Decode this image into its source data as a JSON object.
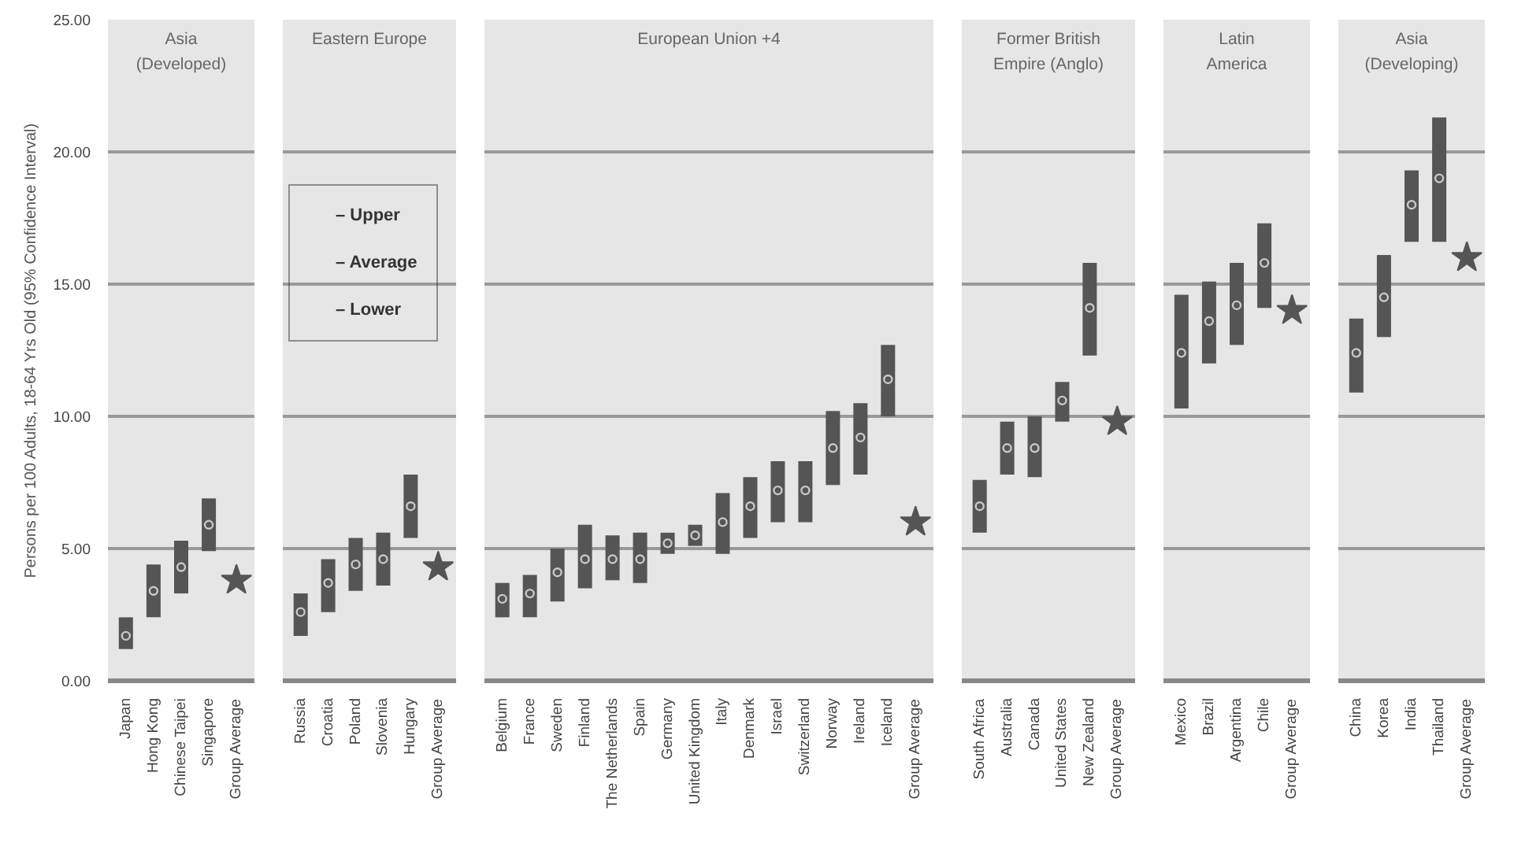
{
  "chart_data": [
    {
      "type": "scatter",
      "title": "Asia\n(Developed)",
      "ylabel": "Persons per 100 Adults, 18-64 Yrs Old (95% Confidence Interval)",
      "categories": [
        "Japan",
        "Hong Kong",
        "Chinese Taipei",
        "Singapore",
        "Group Average"
      ],
      "ylim": [
        0,
        25
      ],
      "yticks": [
        {
          "value": 0,
          "label": "0.00"
        },
        {
          "value": 5,
          "label": "5.00"
        },
        {
          "value": 10,
          "label": "10.00"
        },
        {
          "value": 15,
          "label": "15.00"
        },
        {
          "value": 20,
          "label": "20.00"
        },
        {
          "value": 25,
          "label": "25.00"
        }
      ],
      "grid": "y",
      "series": [
        {
          "marker": "circle",
          "color": "#555555",
          "values": [
            1.7,
            3.4,
            4.3,
            5.9,
            null
          ],
          "errors": [
            [
              1.2,
              2.4
            ],
            [
              2.4,
              4.4
            ],
            [
              3.3,
              5.3
            ],
            [
              4.9,
              6.9
            ],
            null
          ]
        },
        {
          "marker": "star",
          "color": "#555555",
          "values": [
            null,
            null,
            null,
            null,
            3.8
          ]
        }
      ]
    },
    {
      "type": "scatter",
      "title": "Eastern Europe",
      "categories": [
        "Russia",
        "Croatia",
        "Poland",
        "Slovenia",
        "Hungary",
        "Group Average"
      ],
      "ylim": [
        0,
        25
      ],
      "yticks": [
        0,
        5,
        10,
        15,
        20,
        25
      ],
      "grid": "y",
      "tick_labels": "x",
      "series": [
        {
          "marker": "circle",
          "color": "#555555",
          "values": [
            2.6,
            3.7,
            4.4,
            4.6,
            6.6,
            null
          ],
          "errors": [
            [
              1.7,
              3.3
            ],
            [
              2.6,
              4.6
            ],
            [
              3.4,
              5.4
            ],
            [
              3.6,
              5.6
            ],
            [
              5.4,
              7.8
            ],
            null
          ]
        },
        {
          "marker": "star",
          "color": "#555555",
          "values": [
            null,
            null,
            null,
            null,
            null,
            4.3
          ]
        }
      ],
      "annotations": [
        "– Upper",
        "– Average",
        "– Lower"
      ]
    },
    {
      "type": "scatter",
      "title": "European Union +4",
      "categories": [
        "Belgium",
        "France",
        "Sweden",
        "Finland",
        "The Netherlands",
        "Spain",
        "Germany",
        "United Kingdom",
        "Italy",
        "Denmark",
        "Israel",
        "Switzerland",
        "Norway",
        "Ireland",
        "Iceland",
        "Group Average"
      ],
      "ylim": [
        0,
        25
      ],
      "yticks": [
        0,
        5,
        10,
        15,
        20,
        25
      ],
      "grid": "y",
      "tick_labels": "x",
      "series": [
        {
          "marker": "circle",
          "color": "#555555",
          "values": [
            3.1,
            3.3,
            4.1,
            4.6,
            4.6,
            4.6,
            5.2,
            5.5,
            6.0,
            6.6,
            7.2,
            7.2,
            8.8,
            9.2,
            11.4,
            null
          ],
          "errors": [
            [
              2.4,
              3.7
            ],
            [
              2.4,
              4.0
            ],
            [
              3.0,
              5.0
            ],
            [
              3.5,
              5.9
            ],
            [
              3.8,
              5.5
            ],
            [
              3.7,
              5.6
            ],
            [
              4.8,
              5.6
            ],
            [
              5.1,
              5.9
            ],
            [
              4.8,
              7.1
            ],
            [
              5.4,
              7.7
            ],
            [
              6.0,
              8.3
            ],
            [
              6.0,
              8.3
            ],
            [
              7.4,
              10.2
            ],
            [
              7.8,
              10.5
            ],
            [
              10.0,
              12.7
            ],
            null
          ]
        },
        {
          "marker": "star",
          "color": "#555555",
          "values": [
            null,
            null,
            null,
            null,
            null,
            null,
            null,
            null,
            null,
            null,
            null,
            null,
            null,
            null,
            null,
            6.0
          ]
        }
      ]
    },
    {
      "type": "scatter",
      "title": "Former British\nEmpire (Anglo)",
      "categories": [
        "South Africa",
        "Australia",
        "Canada",
        "United States",
        "New Zealand",
        "Group Average"
      ],
      "ylim": [
        0,
        25
      ],
      "yticks": [
        0,
        5,
        10,
        15,
        20,
        25
      ],
      "grid": "y",
      "tick_labels": "x",
      "series": [
        {
          "marker": "circle",
          "color": "#555555",
          "values": [
            6.6,
            8.8,
            8.8,
            10.6,
            14.1,
            null
          ],
          "errors": [
            [
              5.6,
              7.6
            ],
            [
              7.8,
              9.8
            ],
            [
              7.7,
              10.0
            ],
            [
              9.8,
              11.3
            ],
            [
              12.3,
              15.8
            ],
            null
          ]
        },
        {
          "marker": "star",
          "color": "#555555",
          "values": [
            null,
            null,
            null,
            null,
            null,
            9.8
          ]
        }
      ]
    },
    {
      "type": "scatter",
      "title": "Latin\nAmerica",
      "categories": [
        "Mexico",
        "Brazil",
        "Argentina",
        "Chile",
        "Group Average"
      ],
      "ylim": [
        0,
        25
      ],
      "yticks": [
        0,
        5,
        10,
        15,
        20,
        25
      ],
      "grid": "y",
      "tick_labels": "x",
      "series": [
        {
          "marker": "circle",
          "color": "#555555",
          "values": [
            12.4,
            13.6,
            14.2,
            15.8,
            null
          ],
          "errors": [
            [
              10.3,
              14.6
            ],
            [
              12.0,
              15.1
            ],
            [
              12.7,
              15.8
            ],
            [
              14.1,
              17.3
            ],
            null
          ]
        },
        {
          "marker": "star",
          "color": "#555555",
          "values": [
            null,
            null,
            null,
            null,
            14.0
          ]
        }
      ]
    },
    {
      "type": "scatter",
      "title": "Asia\n(Developing)",
      "categories": [
        "China",
        "Korea",
        "India",
        "Thailand",
        "Group Average"
      ],
      "ylim": [
        0,
        25
      ],
      "yticks": [
        0,
        5,
        10,
        15,
        20,
        25
      ],
      "grid": "y",
      "tick_labels": "x",
      "series": [
        {
          "marker": "circle",
          "color": "#555555",
          "values": [
            12.4,
            14.5,
            18.0,
            19.0,
            null
          ],
          "errors": [
            [
              10.9,
              13.7
            ],
            [
              13.0,
              16.1
            ],
            [
              16.6,
              19.3
            ],
            [
              16.6,
              21.3
            ],
            null
          ]
        },
        {
          "marker": "star",
          "color": "#555555",
          "values": [
            null,
            null,
            null,
            null,
            16.0
          ]
        }
      ]
    }
  ]
}
